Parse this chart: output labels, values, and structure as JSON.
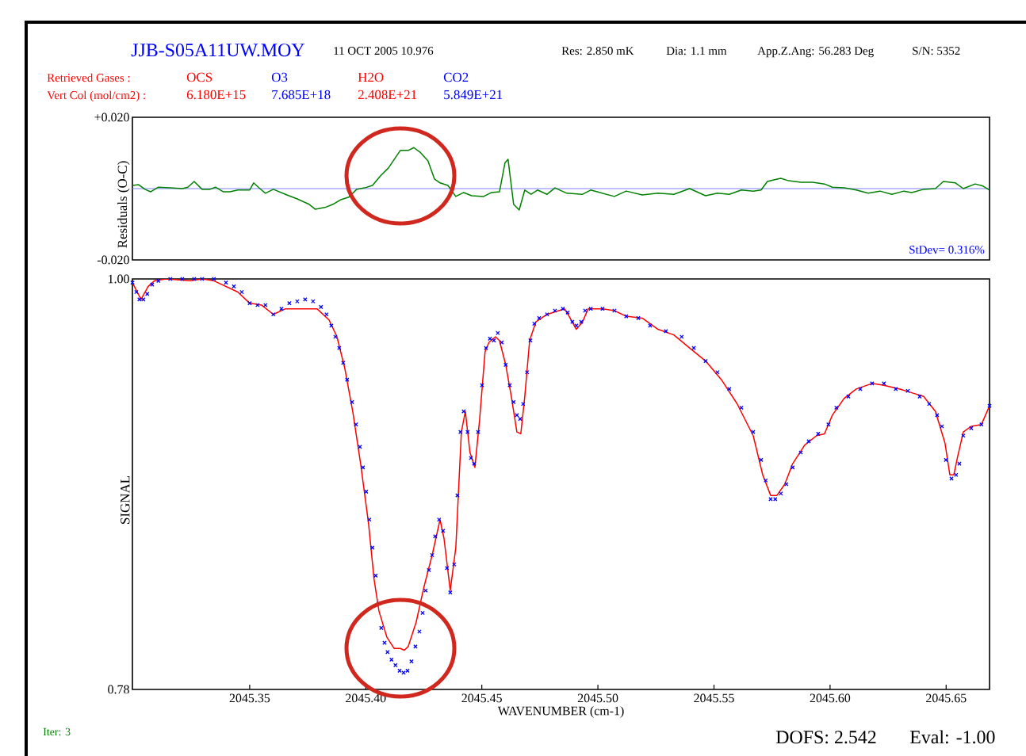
{
  "chart_data": [
    {
      "type": "line",
      "title": "JJB-S05A11UW.MOY",
      "ylabel": "Residuals (O-C)",
      "xlim": [
        2045.2995,
        2045.6687
      ],
      "ylim": [
        -0.02,
        0.02
      ],
      "yticks": [
        {
          "value": 0.02,
          "label": "+0.020"
        },
        {
          "value": -0.02,
          "label": "-0.020"
        }
      ],
      "tick_labels": "y",
      "annotations": [
        "11 OCT 2005 10.976",
        "Res: 2.850 mK",
        "Dia: 1.1 mm",
        "App.Z.Ang: 56.283 Deg",
        "S/N: 5352",
        "Retrieved Gases :",
        "OCS",
        "O3",
        "H2O",
        "CO2",
        "Vert Col (mol/cm2) :",
        "6.180E+15",
        "7.685E+18",
        "2.408E+21",
        "5.849E+21",
        "StDev= 0.316%"
      ],
      "ref_lines": [
        {
          "axis": "y",
          "value": 0,
          "color": "#8080ff"
        }
      ],
      "series": [
        {
          "color": "#008000",
          "x": [
            2045.2995,
            2045.3022,
            2045.3049,
            2045.3073,
            2045.3107,
            2045.3158,
            2045.321,
            2045.3234,
            2045.3261,
            2045.3295,
            2045.3329,
            2045.3353,
            2045.3387,
            2045.3415,
            2045.3449,
            2045.35,
            2045.3517,
            2045.3544,
            2045.3568,
            2045.3602,
            2045.3654,
            2045.3705,
            2045.3756,
            2045.3783,
            2045.3824,
            2045.3859,
            2045.3893,
            2045.3927,
            2045.3961,
            2045.3995,
            2045.4029,
            2045.4064,
            2045.4098,
            2045.4132,
            2045.4149,
            2045.4183,
            2045.4207,
            2045.4234,
            2045.4268,
            2045.4296,
            2045.432,
            2045.4354,
            2045.4388,
            2045.4422,
            2045.4456,
            2045.4508,
            2045.4542,
            2045.4576,
            2045.46,
            2045.4613,
            2045.4637,
            2045.4661,
            2045.4685,
            2045.4712,
            2045.474,
            2045.4781,
            2045.4815,
            2045.4866,
            2045.4934,
            2045.4969,
            2045.502,
            2045.5071,
            2045.5122,
            2045.5191,
            2045.5259,
            2045.5327,
            2045.5395,
            2045.5464,
            2045.5515,
            2045.5566,
            2045.5618,
            2045.5669,
            2045.5703,
            2045.573,
            2045.5754,
            2045.5788,
            2045.5822,
            2045.5874,
            2045.5925,
            2045.5976,
            2045.601,
            2045.6061,
            2045.6113,
            2045.6164,
            2045.6215,
            2045.6266,
            2045.6318,
            2045.6352,
            2045.6403,
            2045.6454,
            2045.6488,
            2045.654,
            2045.6574,
            2045.6625,
            2045.6659,
            2045.6687
          ],
          "values": [
            0.0009,
            0.0011,
            -0.0002,
            -0.0009,
            0.0004,
            0.0002,
            0,
            0.0004,
            0.002,
            -0.0002,
            -0.0002,
            0.0004,
            -0.0009,
            -0.0009,
            -0.0004,
            -0.0004,
            0.0016,
            0,
            -0.0013,
            -0.0002,
            -0.0016,
            -0.0029,
            -0.0044,
            -0.0058,
            -0.0053,
            -0.0044,
            -0.0031,
            -0.0024,
            -0.0002,
            0.0002,
            0.0009,
            0.0036,
            0.0058,
            0.0091,
            0.0107,
            0.0107,
            0.0115,
            0.0102,
            0.0078,
            0.0027,
            0.0016,
            0.0009,
            -0.0022,
            -0.0011,
            -0.002,
            -0.0022,
            -0.0011,
            -0.0009,
            0.0073,
            0.0082,
            -0.0044,
            -0.006,
            -0.0004,
            -0.0016,
            -0.0004,
            -0.0016,
            0.0002,
            -0.0013,
            -0.0016,
            -0.0004,
            -0.0013,
            -0.0022,
            -0.0007,
            -0.0018,
            -0.0013,
            -0.0016,
            0,
            -0.002,
            -0.0013,
            -0.0016,
            -0.0004,
            -0.0007,
            -0.0004,
            0.002,
            0.0024,
            0.0029,
            0.0022,
            0.0018,
            0.0018,
            0.0013,
            0.0004,
            0.0002,
            -0.0004,
            -0.0013,
            -0.0007,
            -0.0016,
            -0.0007,
            -0.0011,
            -0.0002,
            0,
            0.002,
            0.0016,
            0,
            0.0013,
            0.0007,
            -0.0004
          ]
        }
      ]
    },
    {
      "type": "line",
      "xlabel": "WAVENUMBER (cm-1)",
      "ylabel": "SIGNAL",
      "xlim": [
        2045.2995,
        2045.6687
      ],
      "ylim": [
        0.78,
        1.0
      ],
      "xticks": [
        {
          "value": 2045.35,
          "label": "2045.35"
        },
        {
          "value": 2045.4,
          "label": "2045.40"
        },
        {
          "value": 2045.45,
          "label": "2045.45"
        },
        {
          "value": 2045.5,
          "label": "2045.50"
        },
        {
          "value": 2045.55,
          "label": "2045.55"
        },
        {
          "value": 2045.6,
          "label": "2045.60"
        },
        {
          "value": 2045.65,
          "label": "2045.65"
        }
      ],
      "yticks": [
        {
          "value": 1.0,
          "label": "1.00"
        },
        {
          "value": 0.78,
          "label": "0.78"
        }
      ],
      "annotations": [
        "Iter: 3",
        "DOFS: 2.542",
        "Eval: -1.00"
      ],
      "series": [
        {
          "type": "line",
          "color": "#ff0000",
          "x": [
            2045.2995,
            2045.3032,
            2045.3063,
            2045.309,
            2045.3141,
            2045.3244,
            2045.3295,
            2045.3346,
            2045.3449,
            2045.35,
            2045.3551,
            2045.3602,
            2045.3654,
            2045.3722,
            2045.379,
            2045.3842,
            2045.3876,
            2045.391,
            2045.3944,
            2045.3978,
            2045.4012,
            2045.4036,
            2045.4057,
            2045.4091,
            2045.4122,
            2045.4149,
            2045.4166,
            2045.4183,
            2045.4217,
            2045.4251,
            2045.4286,
            2045.432,
            2045.4337,
            2045.4364,
            2045.4388,
            2045.4412,
            2045.4429,
            2045.4449,
            2045.447,
            2045.449,
            2045.4514,
            2045.4531,
            2045.4559,
            2045.4576,
            2045.4603,
            2045.4627,
            2045.4651,
            2045.4668,
            2045.4685,
            2045.4706,
            2045.4733,
            2045.4781,
            2045.4832,
            2045.4856,
            2045.4876,
            2045.4907,
            2045.4934,
            2045.4958,
            2045.502,
            2045.5071,
            2045.5122,
            2045.5191,
            2045.5259,
            2045.5327,
            2045.5395,
            2045.5464,
            2045.5532,
            2045.56,
            2045.5669,
            2045.571,
            2045.5744,
            2045.5771,
            2045.5805,
            2045.5839,
            2045.5891,
            2045.5942,
            2045.5976,
            2045.601,
            2045.6061,
            2045.6113,
            2045.6181,
            2045.6232,
            2045.6301,
            2045.6352,
            2045.6403,
            2045.6454,
            2045.6495,
            2045.6516,
            2045.6533,
            2045.655,
            2045.6574,
            2045.6608,
            2045.6652,
            2045.6687
          ],
          "values": [
            0.998,
            0.989,
            0.996,
            0.999,
            1.0,
            0.999,
            1.0,
            0.999,
            0.993,
            0.987,
            0.986,
            0.981,
            0.984,
            0.984,
            0.984,
            0.978,
            0.969,
            0.952,
            0.929,
            0.901,
            0.869,
            0.839,
            0.822,
            0.808,
            0.802,
            0.802,
            0.801,
            0.803,
            0.816,
            0.835,
            0.852,
            0.871,
            0.861,
            0.833,
            0.856,
            0.918,
            0.929,
            0.907,
            0.899,
            0.924,
            0.961,
            0.966,
            0.969,
            0.967,
            0.954,
            0.937,
            0.918,
            0.917,
            0.937,
            0.967,
            0.977,
            0.981,
            0.983,
            0.984,
            0.98,
            0.973,
            0.977,
            0.984,
            0.984,
            0.983,
            0.98,
            0.979,
            0.973,
            0.97,
            0.963,
            0.956,
            0.946,
            0.933,
            0.916,
            0.895,
            0.884,
            0.884,
            0.89,
            0.901,
            0.911,
            0.916,
            0.917,
            0.927,
            0.936,
            0.941,
            0.944,
            0.943,
            0.941,
            0.939,
            0.937,
            0.929,
            0.912,
            0.895,
            0.895,
            0.905,
            0.918,
            0.921,
            0.922,
            0.932
          ]
        },
        {
          "type": "scatter",
          "color": "#0000ff",
          "marker": "cross",
          "x": [
            2045.2995,
            2045.3012,
            2045.3025,
            2045.3042,
            2045.3059,
            2045.308,
            2045.3107,
            2045.3158,
            2045.321,
            2045.3261,
            2045.3295,
            2045.3346,
            2045.3398,
            2045.3432,
            2045.3466,
            2045.35,
            2045.3534,
            2045.3568,
            2045.3602,
            2045.3637,
            2045.3671,
            2045.3705,
            2045.3739,
            2045.3773,
            2045.3807,
            2045.3831,
            2045.3852,
            2045.3869,
            2045.3886,
            2045.3903,
            2045.392,
            2045.3941,
            2045.3958,
            2045.3975,
            2045.3988,
            2045.4002,
            2045.4016,
            2045.4029,
            2045.4043,
            2045.4057,
            2045.4067,
            2045.4081,
            2045.4094,
            2045.4111,
            2045.4128,
            2045.4146,
            2045.4163,
            2045.418,
            2045.4197,
            2045.4214,
            2045.4231,
            2045.4245,
            2045.4258,
            2045.4272,
            2045.4286,
            2045.4299,
            2045.4316,
            2045.4333,
            2045.435,
            2045.4364,
            2045.4381,
            2045.4395,
            2045.4408,
            2045.4422,
            2045.4439,
            2045.4453,
            2045.4467,
            2045.4484,
            2045.4501,
            2045.4518,
            2045.4535,
            2045.4552,
            2045.4569,
            2045.4586,
            2045.4603,
            2045.462,
            2045.4637,
            2045.4651,
            2045.4665,
            2045.4678,
            2045.4695,
            2045.4709,
            2045.4726,
            2045.4747,
            2045.4781,
            2045.4815,
            2045.4849,
            2045.487,
            2045.489,
            2045.4907,
            2045.4928,
            2045.4945,
            2045.4969,
            2045.502,
            2045.5071,
            2045.5122,
            2045.5174,
            2045.5225,
            2045.5293,
            2045.5361,
            2045.5413,
            2045.5464,
            2045.5515,
            2045.5566,
            2045.5618,
            2045.5669,
            2045.5703,
            2045.5723,
            2045.5744,
            2045.5764,
            2045.5788,
            2045.5812,
            2045.5839,
            2045.5874,
            2045.5908,
            2045.5949,
            2045.5993,
            2045.6027,
            2045.6079,
            2045.613,
            2045.6181,
            2045.6232,
            2045.6283,
            2045.6335,
            2045.6386,
            2045.6427,
            2045.6461,
            2045.6482,
            2045.6499,
            2045.6523,
            2045.6543,
            2045.6557,
            2045.6574,
            2045.6608,
            2045.6652,
            2045.6687
          ],
          "values": [
            0.998,
            0.993,
            0.989,
            0.989,
            0.992,
            0.997,
            0.999,
            1.0,
            1.0,
            1.0,
            1.0,
            1.0,
            0.998,
            0.996,
            0.993,
            0.987,
            0.986,
            0.986,
            0.981,
            0.984,
            0.987,
            0.988,
            0.989,
            0.988,
            0.985,
            0.981,
            0.975,
            0.969,
            0.963,
            0.955,
            0.946,
            0.934,
            0.922,
            0.91,
            0.899,
            0.886,
            0.871,
            0.856,
            0.841,
            0.826,
            0.813,
            0.805,
            0.8,
            0.796,
            0.793,
            0.79,
            0.789,
            0.79,
            0.795,
            0.803,
            0.811,
            0.821,
            0.833,
            0.844,
            0.852,
            0.862,
            0.871,
            0.865,
            0.845,
            0.832,
            0.847,
            0.884,
            0.918,
            0.929,
            0.918,
            0.904,
            0.901,
            0.918,
            0.943,
            0.963,
            0.968,
            0.967,
            0.971,
            0.966,
            0.954,
            0.943,
            0.934,
            0.927,
            0.925,
            0.933,
            0.95,
            0.967,
            0.976,
            0.979,
            0.981,
            0.983,
            0.984,
            0.982,
            0.977,
            0.975,
            0.977,
            0.983,
            0.984,
            0.984,
            0.983,
            0.98,
            0.979,
            0.975,
            0.972,
            0.969,
            0.963,
            0.956,
            0.95,
            0.941,
            0.931,
            0.918,
            0.903,
            0.892,
            0.882,
            0.882,
            0.885,
            0.89,
            0.899,
            0.907,
            0.913,
            0.917,
            0.922,
            0.931,
            0.937,
            0.941,
            0.944,
            0.944,
            0.941,
            0.94,
            0.937,
            0.933,
            0.927,
            0.921,
            0.903,
            0.893,
            0.895,
            0.901,
            0.916,
            0.92,
            0.922,
            0.932
          ]
        }
      ]
    }
  ]
}
